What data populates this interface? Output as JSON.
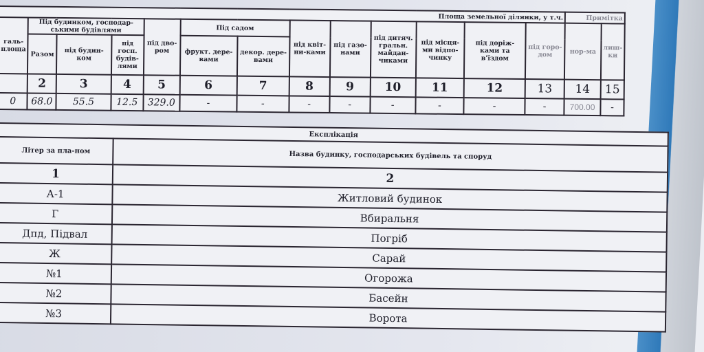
{
  "areas_table": {
    "title": "Площа земельної ділянки, у т.ч.",
    "note_header": "Примітка",
    "col1_header": "галь-\nплоща",
    "group_buildings": "Під будинком, господар-ськими будівлями",
    "group_garden": "Під садом",
    "headers": [
      "Разом",
      "під будин-ком",
      "під госп. будів-лями",
      "під дво-ром",
      "фрукт. дере-вами",
      "декор. дере-вами",
      "під квіт-ни-ками",
      "під газо-нами",
      "під дитяч. гральн. майдан-чиками",
      "під місця-ми відпо-чинку",
      "під доріж-ками та в'їздом",
      "під горо-дом",
      "нор-ма",
      "лиш-ки"
    ],
    "numbers": [
      "",
      "2",
      "3",
      "4",
      "5",
      "6",
      "7",
      "8",
      "9",
      "10",
      "11",
      "12",
      "13",
      "14",
      "15"
    ],
    "values": [
      "0",
      "68.0",
      "55.5",
      "12.5",
      "329.0",
      "-",
      "-",
      "-",
      "-",
      "-",
      "-",
      "-",
      "-",
      "700.00",
      "-"
    ]
  },
  "explication": {
    "title": "Експлікація",
    "headers": [
      "Літер за пла-ном",
      "Назва будинку, господарських будівель та споруд"
    ],
    "numbers": [
      "1",
      "2"
    ],
    "rows": [
      [
        "А-1",
        "Житловий будинок"
      ],
      [
        "Г",
        "Вбиральня"
      ],
      [
        "Дпд, Підвал",
        "Погріб"
      ],
      [
        "Ж",
        "Сарай"
      ],
      [
        "№1",
        "Огорожа"
      ],
      [
        "№2",
        "Басейн"
      ],
      [
        "№3",
        "Ворота"
      ]
    ]
  }
}
